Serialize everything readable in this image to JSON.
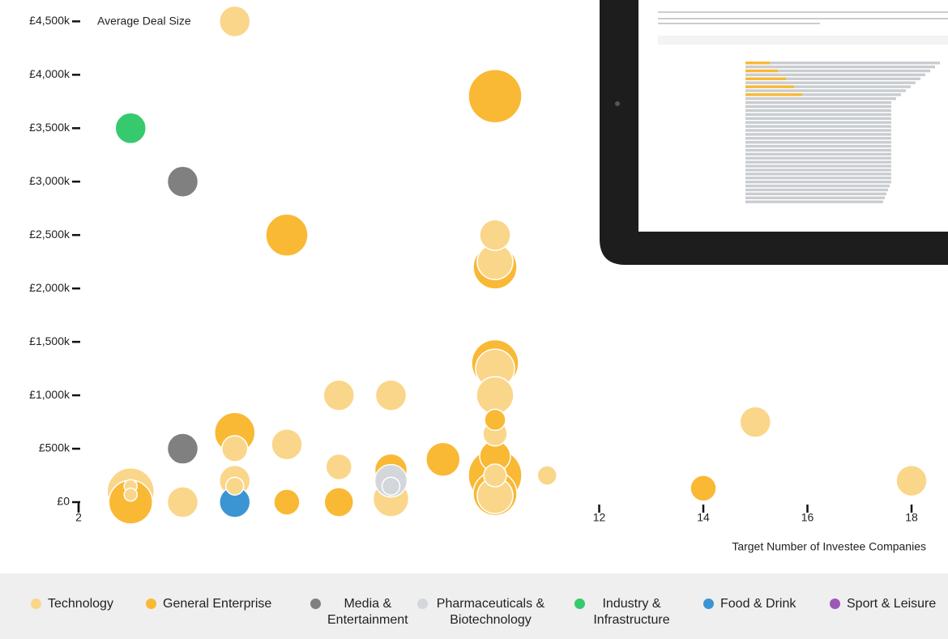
{
  "chart_data": {
    "type": "bubble",
    "y_label": "Average Deal Size",
    "x_label": "Target Number of Investee Companies",
    "xlim": [
      2,
      18.7
    ],
    "ylim": [
      0,
      4700
    ],
    "xticks": [
      2,
      12,
      14,
      16,
      18
    ],
    "yticks": [
      {
        "value": 0,
        "label": "£0"
      },
      {
        "value": 500,
        "label": "£500k"
      },
      {
        "value": 1000,
        "label": "£1,000k"
      },
      {
        "value": 1500,
        "label": "£1,500k"
      },
      {
        "value": 2000,
        "label": "£2,000k"
      },
      {
        "value": 2500,
        "label": "£2,500k"
      },
      {
        "value": 3000,
        "label": "£3,000k"
      },
      {
        "value": 3500,
        "label": "£3,500k"
      },
      {
        "value": 4000,
        "label": "£4,000k"
      },
      {
        "value": 4500,
        "label": "£4,500k"
      }
    ],
    "series": [
      {
        "name": "Technology",
        "color": "#fad68a",
        "x": [
          5,
          10,
          10,
          10,
          10,
          10,
          10,
          10,
          7,
          8,
          6,
          7,
          8,
          11,
          5,
          5,
          5,
          4,
          3,
          3,
          3,
          15,
          18
        ],
        "values": [
          4500,
          2500,
          2250,
          1250,
          1000,
          640,
          250,
          60,
          1000,
          1000,
          540,
          330,
          30,
          250,
          500,
          200,
          150,
          0,
          100,
          150,
          70,
          750,
          200
        ],
        "sizes": [
          19,
          19,
          22,
          24,
          23,
          15,
          14,
          22,
          19,
          19,
          19,
          16,
          22,
          12,
          16,
          19,
          11,
          19,
          29,
          8,
          8,
          19,
          19
        ]
      },
      {
        "name": "General Enterprise",
        "color": "#f9b935",
        "x": [
          10,
          6,
          10,
          10,
          10,
          10,
          10,
          10,
          8,
          9,
          5,
          3,
          6,
          7,
          14
        ],
        "values": [
          3800,
          2500,
          2200,
          1300,
          770,
          430,
          250,
          80,
          300,
          400,
          650,
          0,
          0,
          0,
          130
        ],
        "sizes": [
          33,
          26,
          27,
          29,
          13,
          19,
          33,
          27,
          20,
          21,
          25,
          27,
          16,
          18,
          16
        ]
      },
      {
        "name": "Media & Entertainment",
        "color": "#808080",
        "x": [
          4,
          4
        ],
        "values": [
          3000,
          500
        ],
        "sizes": [
          19,
          19
        ]
      },
      {
        "name": "Pharmaceuticals & Biotechnology",
        "color": "#d3d6da",
        "x": [
          8,
          8
        ],
        "values": [
          200,
          150
        ],
        "sizes": [
          20,
          11
        ]
      },
      {
        "name": "Industry & Infrastructure",
        "color": "#36c96e",
        "x": [
          3
        ],
        "values": [
          3500
        ],
        "sizes": [
          19
        ]
      },
      {
        "name": "Food & Drink",
        "color": "#3b95d3",
        "x": [
          5
        ],
        "values": [
          0
        ],
        "sizes": [
          19
        ]
      },
      {
        "name": "Sport & Leisure",
        "color": "#9b59b6",
        "x": [],
        "values": [],
        "sizes": []
      }
    ]
  }
}
